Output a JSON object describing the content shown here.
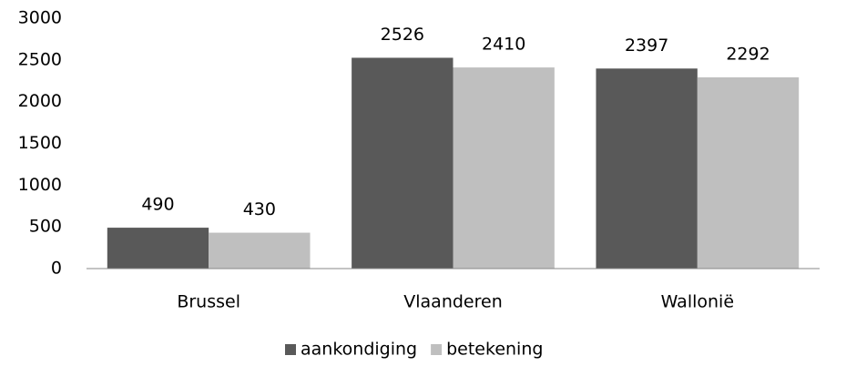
{
  "chart_data": {
    "type": "bar",
    "categories": [
      "Brussel",
      "Vlaanderen",
      "Wallonië"
    ],
    "series": [
      {
        "name": "aankondiging",
        "color": "#595959",
        "values": [
          490,
          2526,
          2397
        ]
      },
      {
        "name": "betekening",
        "color": "#bfbfbf",
        "values": [
          430,
          2410,
          2292
        ]
      }
    ],
    "ylim": [
      0,
      3000
    ],
    "yticks": [
      0,
      500,
      1000,
      1500,
      2000,
      2500,
      3000
    ],
    "grid": false,
    "legend": "bottom"
  }
}
